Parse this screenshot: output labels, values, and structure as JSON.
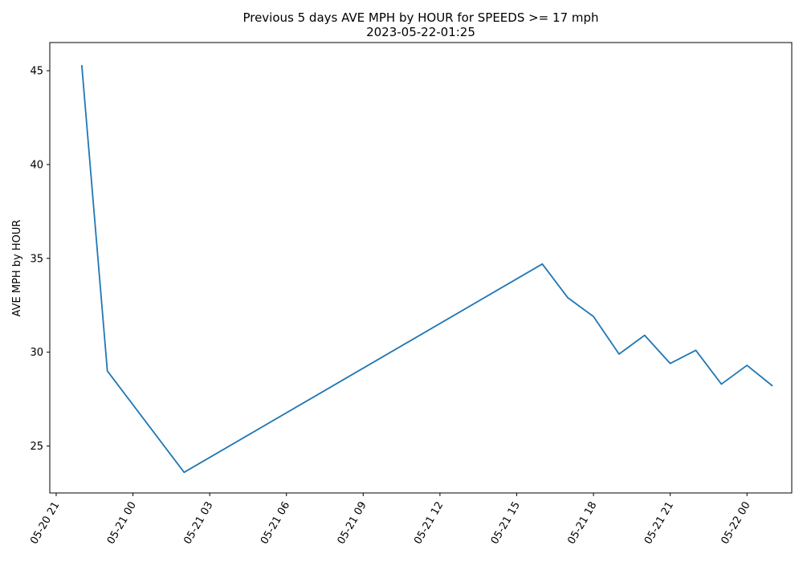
{
  "chart_data": {
    "type": "line",
    "title": "Previous 5 days AVE MPH by HOUR for SPEEDS >= 17 mph",
    "subtitle": "2023-05-22-01:25",
    "xlabel": "",
    "ylabel": "AVE MPH by HOUR",
    "x_ticks": [
      "05-20 21",
      "05-21 00",
      "05-21 03",
      "05-21 06",
      "05-21 09",
      "05-21 12",
      "05-21 15",
      "05-21 18",
      "05-21 21",
      "05-22 00"
    ],
    "y_ticks": [
      "25",
      "30",
      "35",
      "40",
      "45"
    ],
    "xlim": [
      "2023-05-20 20:45",
      "2023-05-22 01:45"
    ],
    "ylim": [
      22.5,
      46.5
    ],
    "grid": false,
    "series_color": "#1f77b4",
    "series": [
      {
        "x": [
          "2023-05-20 22:00",
          "2023-05-20 23:00",
          "2023-05-21 02:00",
          "2023-05-21 16:00",
          "2023-05-21 17:00",
          "2023-05-21 18:00",
          "2023-05-21 19:00",
          "2023-05-21 20:00",
          "2023-05-21 21:00",
          "2023-05-21 22:00",
          "2023-05-21 23:00",
          "2023-05-22 00:00",
          "2023-05-22 01:00"
        ],
        "y": [
          45.3,
          29.0,
          23.6,
          34.7,
          32.9,
          31.9,
          29.9,
          30.9,
          29.4,
          30.1,
          28.3,
          29.3,
          28.2
        ]
      }
    ]
  }
}
